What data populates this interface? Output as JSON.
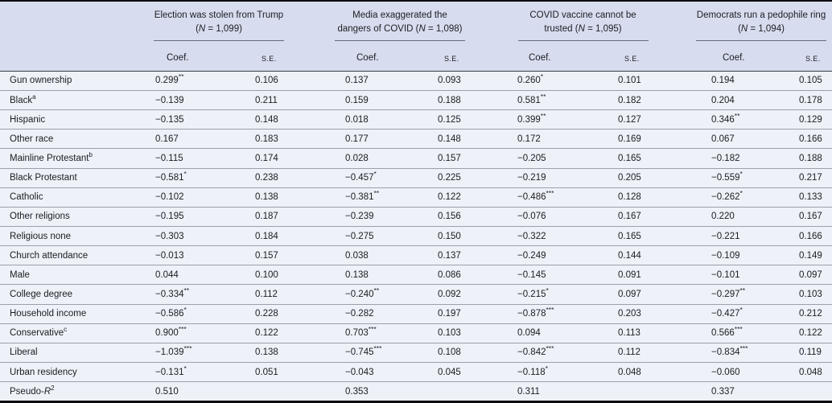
{
  "table": {
    "n_symbol": "N",
    "groups": [
      {
        "title": "Election was stolen from Trump",
        "n": "1,099"
      },
      {
        "title": "Media exaggerated the dangers of COVID",
        "n": "1,098"
      },
      {
        "title": "COVID vaccine cannot be trusted",
        "n": "1,095"
      },
      {
        "title": "Democrats run a pedophile ring",
        "n": "1,094"
      }
    ],
    "subheaders": {
      "coef": "Coef.",
      "se": "S.E."
    },
    "rows": [
      {
        "label": "Gun ownership",
        "values": [
          "0.299**",
          "0.106",
          "0.137",
          "0.093",
          "0.260*",
          "0.101",
          "0.194",
          "0.105"
        ]
      },
      {
        "label": "Black",
        "label_sup": "a",
        "values": [
          "−0.139",
          "0.211",
          "0.159",
          "0.188",
          "0.581**",
          "0.182",
          "0.204",
          "0.178"
        ]
      },
      {
        "label": "Hispanic",
        "values": [
          "−0.135",
          "0.148",
          "0.018",
          "0.125",
          "0.399**",
          "0.127",
          "0.346**",
          "0.129"
        ]
      },
      {
        "label": "Other race",
        "values": [
          "0.167",
          "0.183",
          "0.177",
          "0.148",
          "0.172",
          "0.169",
          "0.067",
          "0.166"
        ]
      },
      {
        "label": "Mainline Protestant",
        "label_sup": "b",
        "values": [
          "−0.115",
          "0.174",
          "0.028",
          "0.157",
          "−0.205",
          "0.165",
          "−0.182",
          "0.188"
        ]
      },
      {
        "label": "Black Protestant",
        "values": [
          "−0.581*",
          "0.238",
          "−0.457*",
          "0.225",
          "−0.219",
          "0.205",
          "−0.559*",
          "0.217"
        ]
      },
      {
        "label": "Catholic",
        "values": [
          "−0.102",
          "0.138",
          "−0.381**",
          "0.122",
          "−0.486***",
          "0.128",
          "−0.262*",
          "0.133"
        ]
      },
      {
        "label": "Other religions",
        "values": [
          "−0.195",
          "0.187",
          "−0.239",
          "0.156",
          "−0.076",
          "0.167",
          "0.220",
          "0.167"
        ]
      },
      {
        "label": "Religious none",
        "values": [
          "−0.303",
          "0.184",
          "−0.275",
          "0.150",
          "−0.322",
          "0.165",
          "−0.221",
          "0.166"
        ]
      },
      {
        "label": "Church attendance",
        "values": [
          "−0.013",
          "0.157",
          "0.038",
          "0.137",
          "−0.249",
          "0.144",
          "−0.109",
          "0.149"
        ]
      },
      {
        "label": "Male",
        "values": [
          "0.044",
          "0.100",
          "0.138",
          "0.086",
          "−0.145",
          "0.091",
          "−0.101",
          "0.097"
        ]
      },
      {
        "label": "College degree",
        "values": [
          "−0.334**",
          "0.112",
          "−0.240**",
          "0.092",
          "−0.215*",
          "0.097",
          "−0.297**",
          "0.103"
        ]
      },
      {
        "label": "Household income",
        "values": [
          "−0.586*",
          "0.228",
          "−0.282",
          "0.197",
          "−0.878***",
          "0.203",
          "−0.427*",
          "0.212"
        ]
      },
      {
        "label": "Conservative",
        "label_sup": "c",
        "values": [
          "0.900***",
          "0.122",
          "0.703***",
          "0.103",
          "0.094",
          "0.113",
          "0.566***",
          "0.122"
        ]
      },
      {
        "label": "Liberal",
        "values": [
          "−1.039***",
          "0.138",
          "−0.745***",
          "0.108",
          "−0.842***",
          "0.112",
          "−0.834***",
          "0.119"
        ]
      },
      {
        "label": "Urban residency",
        "values": [
          "−0.131*",
          "0.051",
          "−0.043",
          "0.045",
          "−0.118*",
          "0.048",
          "−0.060",
          "0.048"
        ]
      },
      {
        "label": "Pseudo-",
        "label_italic": "R",
        "label_sup": "2",
        "values": [
          "0.510",
          "",
          "0.353",
          "",
          "0.311",
          "",
          "0.337",
          ""
        ]
      }
    ]
  },
  "colors": {
    "header_bg": "#d7ddef",
    "body_bg": "#eef1f8",
    "row_line": "#9aa0aa",
    "header_line": "#3b3f48",
    "outer_border": "#0b0b0d",
    "text": "#1b1d22"
  }
}
